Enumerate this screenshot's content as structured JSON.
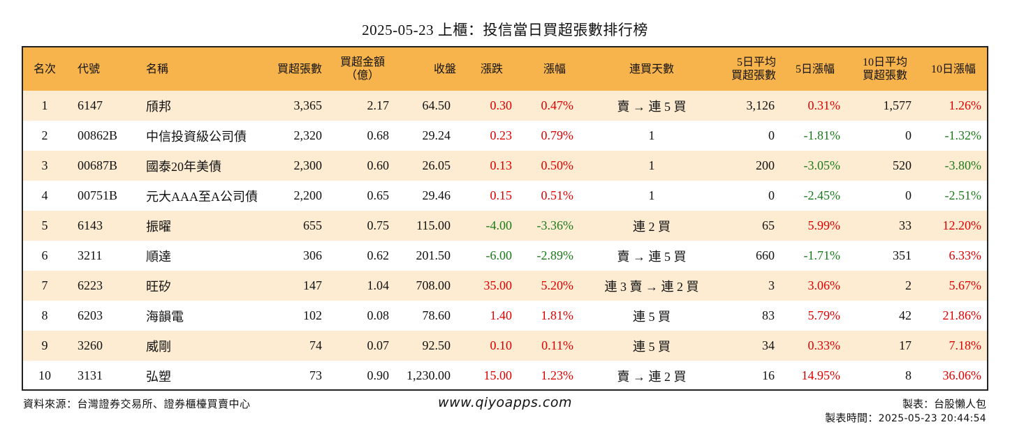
{
  "title": "2025-05-23 上櫃：投信當日買超張數排行榜",
  "colors": {
    "header_bg": "#f8b44c",
    "row_alt_bg": "#fdecd2",
    "up": "#e00000",
    "down": "#1a7a1a"
  },
  "columns": [
    "名次",
    "代號",
    "名稱",
    "買超張數",
    "買超金額\n（億）",
    "收盤",
    "漲跌",
    "漲幅",
    "連買天數",
    "5日平均\n買超張數",
    "5日漲幅",
    "10日平均\n買超張數",
    "10日漲幅"
  ],
  "rows": [
    {
      "rank": "1",
      "code": "6147",
      "name": "頎邦",
      "net_buy": "3,365",
      "amount": "2.17",
      "close": "64.50",
      "change": "0.30",
      "change_dir": "up",
      "pct": "0.47%",
      "pct_dir": "up",
      "streak": "賣 → 連 5 買",
      "avg5": "3,126",
      "pct5": "0.31%",
      "pct5_dir": "up",
      "avg10": "1,577",
      "pct10": "1.26%",
      "pct10_dir": "up"
    },
    {
      "rank": "2",
      "code": "00862B",
      "name": "中信投資級公司債",
      "net_buy": "2,320",
      "amount": "0.68",
      "close": "29.24",
      "change": "0.23",
      "change_dir": "up",
      "pct": "0.79%",
      "pct_dir": "up",
      "streak": "1",
      "avg5": "0",
      "pct5": "-1.81%",
      "pct5_dir": "down",
      "avg10": "0",
      "pct10": "-1.32%",
      "pct10_dir": "down"
    },
    {
      "rank": "3",
      "code": "00687B",
      "name": "國泰20年美債",
      "net_buy": "2,300",
      "amount": "0.60",
      "close": "26.05",
      "change": "0.13",
      "change_dir": "up",
      "pct": "0.50%",
      "pct_dir": "up",
      "streak": "1",
      "avg5": "200",
      "pct5": "-3.05%",
      "pct5_dir": "down",
      "avg10": "520",
      "pct10": "-3.80%",
      "pct10_dir": "down"
    },
    {
      "rank": "4",
      "code": "00751B",
      "name": "元大AAA至A公司債",
      "net_buy": "2,200",
      "amount": "0.65",
      "close": "29.46",
      "change": "0.15",
      "change_dir": "up",
      "pct": "0.51%",
      "pct_dir": "up",
      "streak": "1",
      "avg5": "0",
      "pct5": "-2.45%",
      "pct5_dir": "down",
      "avg10": "0",
      "pct10": "-2.51%",
      "pct10_dir": "down"
    },
    {
      "rank": "5",
      "code": "6143",
      "name": "振曜",
      "net_buy": "655",
      "amount": "0.75",
      "close": "115.00",
      "change": "-4.00",
      "change_dir": "down",
      "pct": "-3.36%",
      "pct_dir": "down",
      "streak": "連 2 買",
      "avg5": "65",
      "pct5": "5.99%",
      "pct5_dir": "up",
      "avg10": "33",
      "pct10": "12.20%",
      "pct10_dir": "up"
    },
    {
      "rank": "6",
      "code": "3211",
      "name": "順達",
      "net_buy": "306",
      "amount": "0.62",
      "close": "201.50",
      "change": "-6.00",
      "change_dir": "down",
      "pct": "-2.89%",
      "pct_dir": "down",
      "streak": "賣 → 連 5 買",
      "avg5": "660",
      "pct5": "-1.71%",
      "pct5_dir": "down",
      "avg10": "351",
      "pct10": "6.33%",
      "pct10_dir": "up"
    },
    {
      "rank": "7",
      "code": "6223",
      "name": "旺矽",
      "net_buy": "147",
      "amount": "1.04",
      "close": "708.00",
      "change": "35.00",
      "change_dir": "up",
      "pct": "5.20%",
      "pct_dir": "up",
      "streak": "連 3 賣 → 連 2 買",
      "avg5": "3",
      "pct5": "3.06%",
      "pct5_dir": "up",
      "avg10": "2",
      "pct10": "5.67%",
      "pct10_dir": "up"
    },
    {
      "rank": "8",
      "code": "6203",
      "name": "海韻電",
      "net_buy": "102",
      "amount": "0.08",
      "close": "78.60",
      "change": "1.40",
      "change_dir": "up",
      "pct": "1.81%",
      "pct_dir": "up",
      "streak": "連 5 買",
      "avg5": "83",
      "pct5": "5.79%",
      "pct5_dir": "up",
      "avg10": "42",
      "pct10": "21.86%",
      "pct10_dir": "up"
    },
    {
      "rank": "9",
      "code": "3260",
      "name": "威剛",
      "net_buy": "74",
      "amount": "0.07",
      "close": "92.50",
      "change": "0.10",
      "change_dir": "up",
      "pct": "0.11%",
      "pct_dir": "up",
      "streak": "連 5 買",
      "avg5": "34",
      "pct5": "0.33%",
      "pct5_dir": "up",
      "avg10": "17",
      "pct10": "7.18%",
      "pct10_dir": "up"
    },
    {
      "rank": "10",
      "code": "3131",
      "name": "弘塑",
      "net_buy": "73",
      "amount": "0.90",
      "close": "1,230.00",
      "change": "15.00",
      "change_dir": "up",
      "pct": "1.23%",
      "pct_dir": "up",
      "streak": "賣 → 連 2 買",
      "avg5": "16",
      "pct5": "14.95%",
      "pct5_dir": "up",
      "avg10": "8",
      "pct10": "36.06%",
      "pct10_dir": "up"
    }
  ],
  "footer": {
    "source": "資料來源：台灣證券交易所、證券櫃檯買賣中心",
    "website": "www.qiyoapps.com",
    "maker": "製表：台股懶人包",
    "time_label": "製表時間：",
    "time_value": "2025-05-23 20:44:54"
  }
}
